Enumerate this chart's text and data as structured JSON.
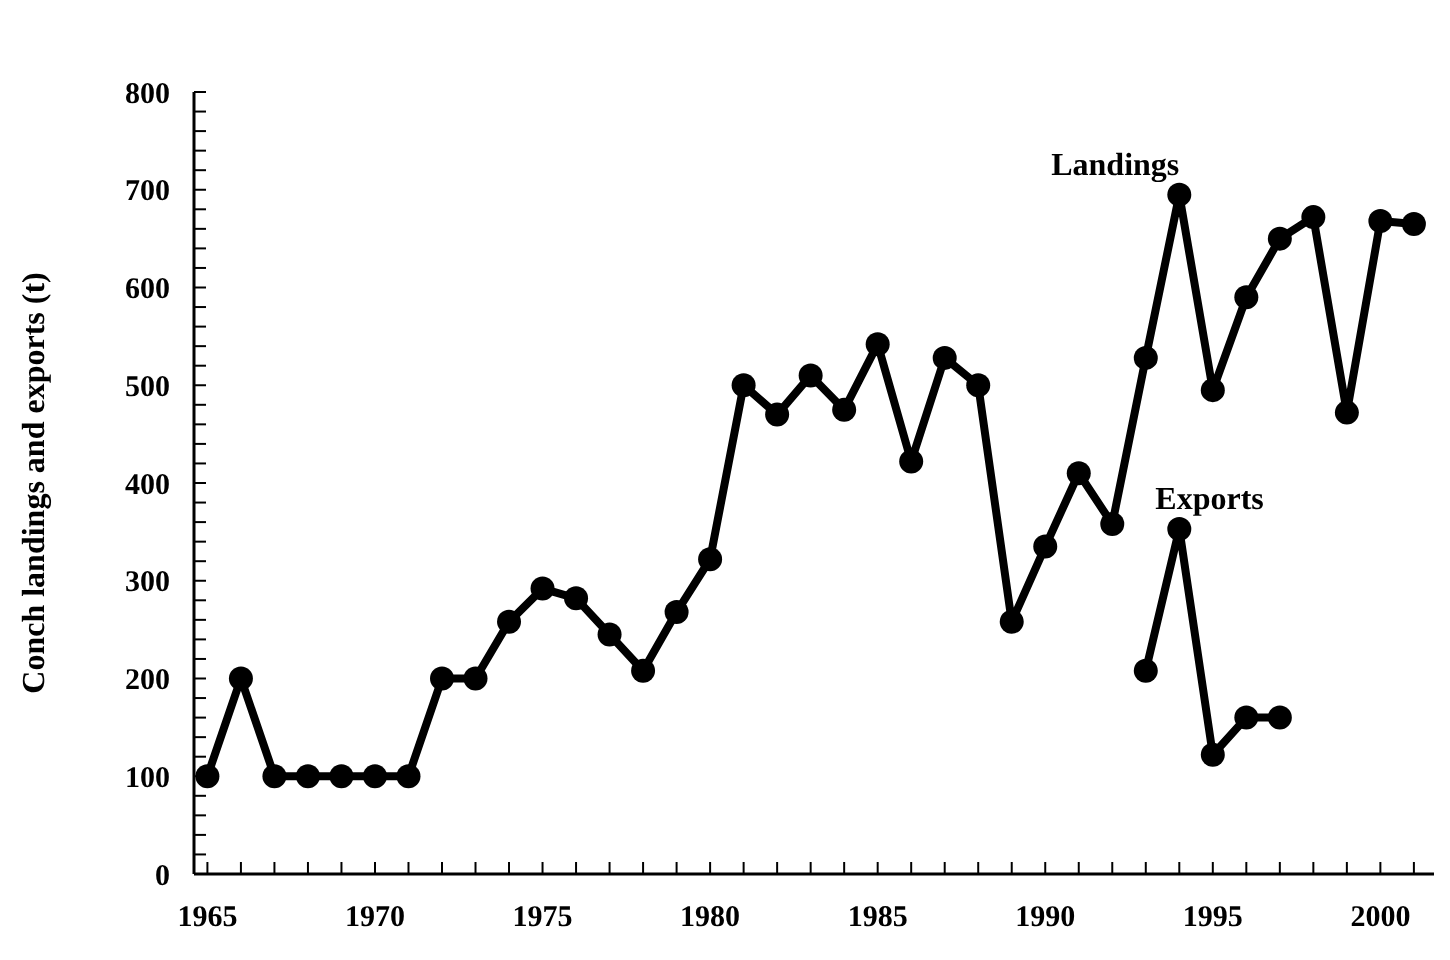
{
  "chart_data": {
    "type": "line",
    "ylabel": "Conch landings and exports (t)",
    "xlim": [
      1964.6,
      2001.6
    ],
    "ylim": [
      0,
      800
    ],
    "xticks": [
      1965,
      {
        "value": 1966,
        "label": null
      },
      {
        "value": 1967,
        "label": null
      },
      {
        "value": 1968,
        "label": null
      },
      {
        "value": 1969,
        "label": null
      },
      1970,
      {
        "value": 1971,
        "label": null
      },
      {
        "value": 1972,
        "label": null
      },
      {
        "value": 1973,
        "label": null
      },
      {
        "value": 1974,
        "label": null
      },
      1975,
      {
        "value": 1976,
        "label": null
      },
      {
        "value": 1977,
        "label": null
      },
      {
        "value": 1978,
        "label": null
      },
      {
        "value": 1979,
        "label": null
      },
      1980,
      {
        "value": 1981,
        "label": null
      },
      {
        "value": 1982,
        "label": null
      },
      {
        "value": 1983,
        "label": null
      },
      {
        "value": 1984,
        "label": null
      },
      1985,
      {
        "value": 1986,
        "label": null
      },
      {
        "value": 1987,
        "label": null
      },
      {
        "value": 1988,
        "label": null
      },
      {
        "value": 1989,
        "label": null
      },
      1990,
      {
        "value": 1991,
        "label": null
      },
      {
        "value": 1992,
        "label": null
      },
      {
        "value": 1993,
        "label": null
      },
      {
        "value": 1994,
        "label": null
      },
      1995,
      {
        "value": 1996,
        "label": null
      },
      {
        "value": 1997,
        "label": null
      },
      {
        "value": 1998,
        "label": null
      },
      {
        "value": 1999,
        "label": null
      },
      2000,
      {
        "value": 2001,
        "label": null
      }
    ],
    "yticks": [
      0,
      {
        "value": 20,
        "label": null
      },
      {
        "value": 40,
        "label": null
      },
      {
        "value": 60,
        "label": null
      },
      {
        "value": 80,
        "label": null
      },
      100,
      {
        "value": 120,
        "label": null
      },
      {
        "value": 140,
        "label": null
      },
      {
        "value": 160,
        "label": null
      },
      {
        "value": 180,
        "label": null
      },
      200,
      {
        "value": 220,
        "label": null
      },
      {
        "value": 240,
        "label": null
      },
      {
        "value": 260,
        "label": null
      },
      {
        "value": 280,
        "label": null
      },
      300,
      {
        "value": 320,
        "label": null
      },
      {
        "value": 340,
        "label": null
      },
      {
        "value": 360,
        "label": null
      },
      {
        "value": 380,
        "label": null
      },
      400,
      {
        "value": 420,
        "label": null
      },
      {
        "value": 440,
        "label": null
      },
      {
        "value": 460,
        "label": null
      },
      {
        "value": 480,
        "label": null
      },
      500,
      {
        "value": 520,
        "label": null
      },
      {
        "value": 540,
        "label": null
      },
      {
        "value": 560,
        "label": null
      },
      {
        "value": 580,
        "label": null
      },
      600,
      {
        "value": 620,
        "label": null
      },
      {
        "value": 640,
        "label": null
      },
      {
        "value": 660,
        "label": null
      },
      {
        "value": 680,
        "label": null
      },
      700,
      {
        "value": 720,
        "label": null
      },
      {
        "value": 740,
        "label": null
      },
      {
        "value": 760,
        "label": null
      },
      {
        "value": 780,
        "label": null
      },
      800
    ],
    "marker": "circle",
    "grid": false,
    "series": [
      {
        "name": "Landings",
        "color": "#000000",
        "x": [
          1965,
          1966,
          1967,
          1968,
          1969,
          1970,
          1971,
          1972,
          1973,
          1974,
          1975,
          1976,
          1977,
          1978,
          1979,
          1980,
          1981,
          1982,
          1983,
          1984,
          1985,
          1986,
          1987,
          1988,
          1989,
          1990,
          1991,
          1992,
          1993,
          1994,
          1995,
          1996,
          1997,
          1998,
          1999,
          2000,
          2001
        ],
        "values": [
          100,
          200,
          100,
          100,
          100,
          100,
          100,
          200,
          200,
          258,
          292,
          282,
          245,
          208,
          268,
          322,
          500,
          470,
          510,
          475,
          542,
          422,
          528,
          500,
          258,
          335,
          410,
          358,
          528,
          695,
          495,
          590,
          650,
          672,
          472,
          668,
          665
        ]
      },
      {
        "name": "Exports",
        "color": "#000000",
        "x": [
          1993,
          1994,
          1995,
          1996,
          1997
        ],
        "values": [
          208,
          353,
          122,
          160,
          160
        ]
      }
    ]
  }
}
